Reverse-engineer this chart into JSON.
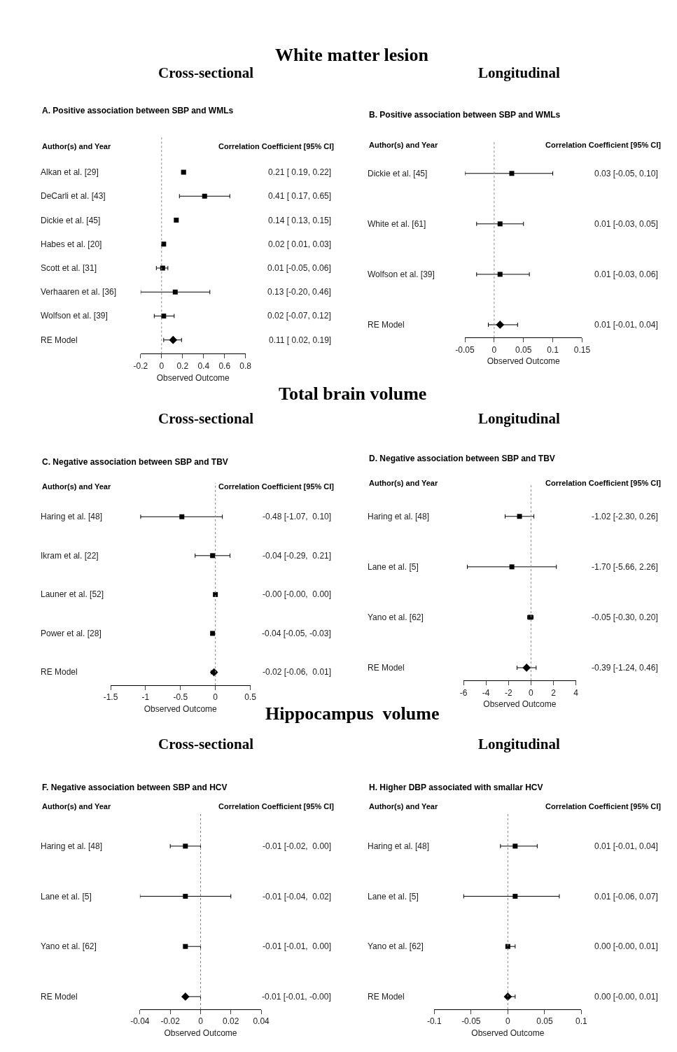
{
  "chart_data": [
    {
      "type": "scatter",
      "orientation": "horizontal",
      "title": "A. Positive association between SBP and WMLs",
      "xlabel": "Observed Outcome",
      "annotations": [
        "Author(s) and Year",
        "Correlation Coefficient [95% CI]",
        "White matter lesion",
        "Cross-sectional"
      ],
      "categories": [
        "Alkan et al. [29]",
        "DeCarli et al. [43]",
        "Dickie et al. [45]",
        "Habes et al. [20]",
        "Scott et al. [31]",
        "Verhaaren et al. [36]",
        "Wolfson et al. [39]",
        "RE Model"
      ],
      "xlim": [
        -0.2,
        0.8
      ],
      "xticks": [
        -0.2,
        0,
        0.2,
        0.4,
        0.6,
        0.8
      ],
      "ref_lines": [
        {
          "axis": "x",
          "value": 0,
          "line_style": "dotted",
          "color": "#888888"
        }
      ],
      "series": [
        {
          "color": "#000000",
          "marker": "square",
          "values": [
            0.21,
            0.41,
            0.14,
            0.02,
            0.01,
            0.13,
            0.02,
            null
          ],
          "errors": [
            [
              0.19,
              0.22
            ],
            [
              0.17,
              0.65
            ],
            [
              0.13,
              0.15
            ],
            [
              0.01,
              0.03
            ],
            [
              -0.05,
              0.06
            ],
            [
              -0.2,
              0.46
            ],
            [
              -0.07,
              0.12
            ],
            null
          ],
          "value_labels": [
            "0.21 [ 0.19, 0.22]",
            "0.41 [ 0.17, 0.65]",
            "0.14 [ 0.13, 0.15]",
            "0.02 [ 0.01, 0.03]",
            "0.01 [-0.05, 0.06]",
            "0.13 [-0.20, 0.46]",
            "0.02 [-0.07, 0.12]",
            "0.11 [ 0.02, 0.19]"
          ]
        },
        {
          "color": "#000000",
          "marker": "diamond",
          "values": [
            null,
            null,
            null,
            null,
            null,
            null,
            null,
            0.11
          ],
          "errors": [
            null,
            null,
            null,
            null,
            null,
            null,
            null,
            [
              0.02,
              0.19
            ]
          ]
        }
      ]
    },
    {
      "type": "scatter",
      "orientation": "horizontal",
      "title": "B. Positive association between SBP and WMLs",
      "xlabel": "Observed Outcome",
      "annotations": [
        "Author(s) and Year",
        "Correlation Coefficient [95% CI]",
        "Longitudinal"
      ],
      "categories": [
        "Dickie et al. [45]",
        "White et al. [61]",
        "Wolfson et al. [39]",
        "RE Model"
      ],
      "xlim": [
        -0.05,
        0.15
      ],
      "xticks": [
        -0.05,
        0,
        0.05,
        0.1,
        0.15
      ],
      "ref_lines": [
        {
          "axis": "x",
          "value": 0,
          "line_style": "dotted",
          "color": "#888888"
        }
      ],
      "series": [
        {
          "color": "#000000",
          "marker": "square",
          "values": [
            0.03,
            0.01,
            0.01,
            null
          ],
          "errors": [
            [
              -0.05,
              0.1
            ],
            [
              -0.03,
              0.05
            ],
            [
              -0.03,
              0.06
            ],
            null
          ],
          "value_labels": [
            "0.03 [-0.05, 0.10]",
            "0.01 [-0.03, 0.05]",
            "0.01 [-0.03, 0.06]",
            "0.01 [-0.01, 0.04]"
          ]
        },
        {
          "color": "#000000",
          "marker": "diamond",
          "values": [
            null,
            null,
            null,
            0.01
          ],
          "errors": [
            null,
            null,
            null,
            [
              -0.01,
              0.04
            ]
          ]
        }
      ]
    },
    {
      "type": "scatter",
      "orientation": "horizontal",
      "title": "C. Negative association between SBP and TBV",
      "xlabel": "Observed Outcome",
      "annotations": [
        "Author(s) and Year",
        "Correlation Coefficient [95% CI]",
        "Total brain volume",
        "Cross-sectional"
      ],
      "categories": [
        "Haring et al. [48]",
        "Ikram et al. [22]",
        "Launer et al. [52]",
        "Power et al. [28]",
        "RE Model"
      ],
      "xlim": [
        -1.5,
        0.5
      ],
      "xticks": [
        -1.5,
        -1,
        -0.5,
        0,
        0.5
      ],
      "ref_lines": [
        {
          "axis": "x",
          "value": 0,
          "line_style": "dotted",
          "color": "#888888"
        }
      ],
      "series": [
        {
          "color": "#000000",
          "marker": "square",
          "values": [
            -0.48,
            -0.04,
            -0.0,
            -0.04,
            null
          ],
          "errors": [
            [
              -1.07,
              0.1
            ],
            [
              -0.29,
              0.21
            ],
            [
              -0.0,
              0.0
            ],
            [
              -0.05,
              -0.03
            ],
            null
          ],
          "value_labels": [
            "-0.48 [-1.07,  0.10]",
            "-0.04 [-0.29,  0.21]",
            "-0.00 [-0.00,  0.00]",
            "-0.04 [-0.05, -0.03]",
            "-0.02 [-0.06,  0.01]"
          ]
        },
        {
          "color": "#000000",
          "marker": "diamond",
          "values": [
            null,
            null,
            null,
            null,
            -0.02
          ],
          "errors": [
            null,
            null,
            null,
            null,
            [
              -0.06,
              0.01
            ]
          ]
        }
      ]
    },
    {
      "type": "scatter",
      "orientation": "horizontal",
      "title": "D. Negative association between SBP and TBV",
      "xlabel": "Observed Outcome",
      "annotations": [
        "Author(s) and Year",
        "Correlation Coefficient [95% CI]",
        "Longitudinal"
      ],
      "categories": [
        "Haring et al. [48]",
        "Lane et al. [5]",
        "Yano et al. [62]",
        "RE Model"
      ],
      "xlim": [
        -6,
        4
      ],
      "xticks": [
        -6,
        -4,
        -2,
        0,
        2,
        4
      ],
      "ref_lines": [
        {
          "axis": "x",
          "value": 0,
          "line_style": "dotted",
          "color": "#888888"
        }
      ],
      "series": [
        {
          "color": "#000000",
          "marker": "square",
          "values": [
            -1.02,
            -1.7,
            -0.05,
            null
          ],
          "errors": [
            [
              -2.3,
              0.26
            ],
            [
              -5.66,
              2.26
            ],
            [
              -0.3,
              0.2
            ],
            null
          ],
          "value_labels": [
            "-1.02 [-2.30, 0.26]",
            "-1.70 [-5.66, 2.26]",
            "-0.05 [-0.30, 0.20]",
            "-0.39 [-1.24, 0.46]"
          ]
        },
        {
          "color": "#000000",
          "marker": "diamond",
          "values": [
            null,
            null,
            null,
            -0.39
          ],
          "errors": [
            null,
            null,
            null,
            [
              -1.24,
              0.46
            ]
          ]
        }
      ]
    },
    {
      "type": "scatter",
      "orientation": "horizontal",
      "title": "F. Negative association between SBP and HCV",
      "xlabel": "Observed Outcome",
      "annotations": [
        "Author(s) and Year",
        "Correlation Coefficient [95% CI]",
        "Hippocampus  volume",
        "Cross-sectional"
      ],
      "categories": [
        "Haring et al. [48]",
        "Lane et al. [5]",
        "Yano et al. [62]",
        "RE Model"
      ],
      "xlim": [
        -0.04,
        0.04
      ],
      "xticks": [
        -0.04,
        -0.02,
        0,
        0.02,
        0.04
      ],
      "ref_lines": [
        {
          "axis": "x",
          "value": 0,
          "line_style": "dotted",
          "color": "#888888"
        }
      ],
      "series": [
        {
          "color": "#000000",
          "marker": "square",
          "values": [
            -0.01,
            -0.01,
            -0.01,
            null
          ],
          "errors": [
            [
              -0.02,
              0.0
            ],
            [
              -0.04,
              0.02
            ],
            [
              -0.01,
              0.0
            ],
            null
          ],
          "value_labels": [
            "-0.01 [-0.02,  0.00]",
            "-0.01 [-0.04,  0.02]",
            "-0.01 [-0.01,  0.00]",
            "-0.01 [-0.01, -0.00]"
          ]
        },
        {
          "color": "#000000",
          "marker": "diamond",
          "values": [
            null,
            null,
            null,
            -0.01
          ],
          "errors": [
            null,
            null,
            null,
            [
              -0.01,
              -0.0
            ]
          ]
        }
      ]
    },
    {
      "type": "scatter",
      "orientation": "horizontal",
      "title": "H. Higher DBP associated with smallar HCV",
      "xlabel": "Observed Outcome",
      "annotations": [
        "Author(s) and Year",
        "Correlation Coefficient [95% CI]",
        "Longitudinal"
      ],
      "categories": [
        "Haring et al. [48]",
        "Lane et al. [5]",
        "Yano et al. [62]",
        "RE Model"
      ],
      "xlim": [
        -0.1,
        0.1
      ],
      "xticks": [
        -0.1,
        -0.05,
        0,
        0.05,
        0.1
      ],
      "ref_lines": [
        {
          "axis": "x",
          "value": 0,
          "line_style": "dotted",
          "color": "#888888"
        }
      ],
      "series": [
        {
          "color": "#000000",
          "marker": "square",
          "values": [
            0.01,
            0.01,
            0.0,
            null
          ],
          "errors": [
            [
              -0.01,
              0.04
            ],
            [
              -0.06,
              0.07
            ],
            [
              -0.0,
              0.01
            ],
            null
          ],
          "value_labels": [
            "0.01 [-0.01, 0.04]",
            "0.01 [-0.06, 0.07]",
            "0.00 [-0.00, 0.01]",
            "0.00 [-0.00, 0.01]"
          ]
        },
        {
          "color": "#000000",
          "marker": "diamond",
          "values": [
            null,
            null,
            null,
            0.0
          ],
          "errors": [
            null,
            null,
            null,
            [
              -0.0,
              0.01
            ]
          ]
        }
      ]
    }
  ]
}
